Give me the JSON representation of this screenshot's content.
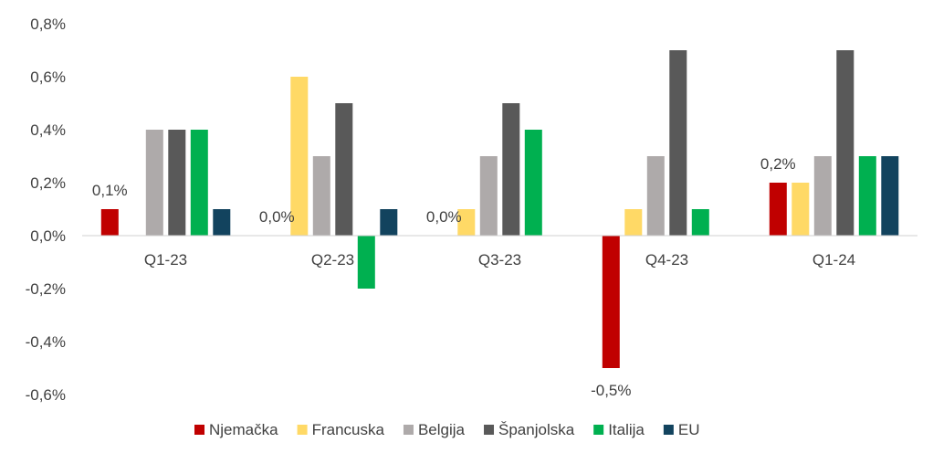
{
  "chart_data": {
    "type": "bar",
    "categories": [
      "Q1-23",
      "Q2-23",
      "Q3-23",
      "Q4-23",
      "Q1-24"
    ],
    "ylim": [
      -0.6,
      0.8
    ],
    "ytick_values": [
      0.8,
      0.6,
      0.4,
      0.2,
      0.0,
      -0.2,
      -0.4,
      -0.6
    ],
    "ytick_labels": [
      "0,8%",
      "0,6%",
      "0,4%",
      "0,2%",
      "0,0%",
      "-0,2%",
      "-0,4%",
      "-0,6%"
    ],
    "grid": false,
    "legend_position": "bottom",
    "series": [
      {
        "name": "Njemačka",
        "color": "#C00000",
        "values": [
          0.1,
          0.0,
          0.0,
          -0.5,
          0.2
        ],
        "data_labels": [
          "0,1%",
          "0,0%",
          "0,0%",
          "-0,5%",
          "0,2%"
        ]
      },
      {
        "name": "Francuska",
        "color": "#FFD966",
        "values": [
          0.0,
          0.6,
          0.1,
          0.1,
          0.2
        ]
      },
      {
        "name": "Belgija",
        "color": "#AEAAAA",
        "values": [
          0.4,
          0.3,
          0.3,
          0.3,
          0.3
        ]
      },
      {
        "name": "Španjolska",
        "color": "#595959",
        "values": [
          0.4,
          0.5,
          0.5,
          0.7,
          0.7
        ]
      },
      {
        "name": "Italija",
        "color": "#00B050",
        "values": [
          0.4,
          -0.2,
          0.4,
          0.1,
          0.3
        ]
      },
      {
        "name": "EU",
        "color": "#12435E",
        "values": [
          0.1,
          0.1,
          0.0,
          0.0,
          0.3
        ]
      }
    ]
  }
}
